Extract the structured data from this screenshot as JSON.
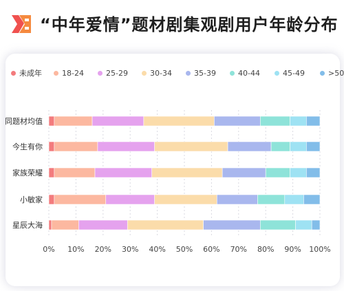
{
  "title": "“中年爱情”题材剧集观剧用户年龄分布",
  "chart_data": {
    "type": "bar",
    "orientation": "horizontal",
    "stacked": true,
    "categories": [
      "同题材均值",
      "今生有你",
      "家族荣耀",
      "小敏家",
      "星辰大海"
    ],
    "series": [
      {
        "name": "未成年",
        "color": "#f37b7d",
        "values": [
          2,
          2,
          2,
          2,
          1
        ]
      },
      {
        "name": "18-24",
        "color": "#fcb8a0",
        "values": [
          14,
          16,
          15,
          19,
          10
        ]
      },
      {
        "name": "25-29",
        "color": "#e5a2ee",
        "values": [
          19,
          21,
          21,
          18,
          18
        ]
      },
      {
        "name": "30-34",
        "color": "#fbdcaa",
        "values": [
          26,
          27,
          26,
          23,
          28
        ]
      },
      {
        "name": "35-39",
        "color": "#a9b7ee",
        "values": [
          17,
          16,
          16,
          15,
          21
        ]
      },
      {
        "name": "40-44",
        "color": "#8ee3d9",
        "values": [
          11,
          7,
          9,
          10,
          13
        ]
      },
      {
        "name": "45-49",
        "color": "#9ee2f3",
        "values": [
          6,
          6,
          6,
          7,
          6
        ]
      },
      {
        "name": ">50",
        "color": "#82bde9",
        "values": [
          5,
          5,
          5,
          6,
          3
        ]
      }
    ],
    "x_ticks": [
      "0%",
      "10%",
      "20%",
      "30%",
      "40%",
      "50%",
      "60%",
      "70%",
      "80%",
      "90%",
      "100%"
    ],
    "xlim": [
      0,
      100
    ],
    "legend": "top",
    "grid": "vertical-dashed"
  }
}
